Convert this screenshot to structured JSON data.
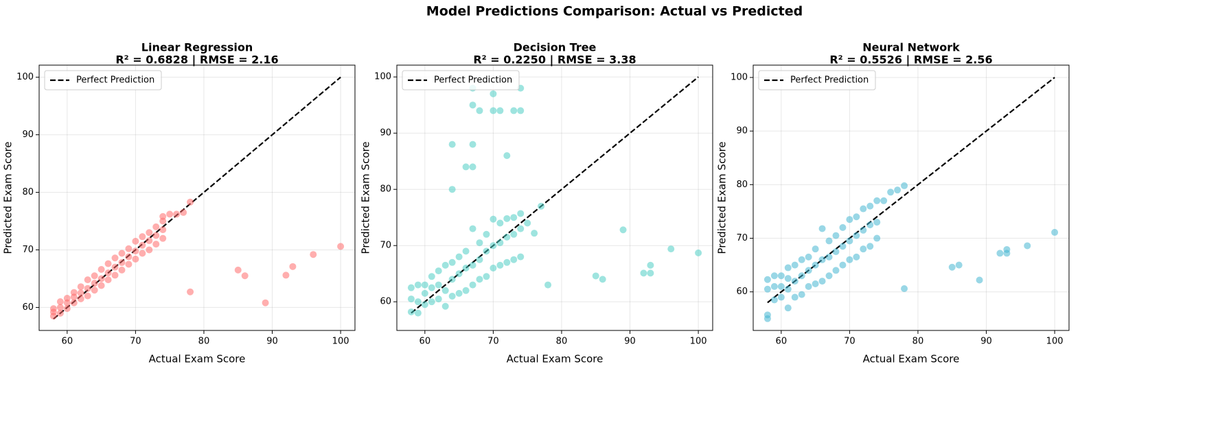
{
  "title": "Model Predictions Comparison: Actual vs Predicted",
  "chart_data": [
    {
      "type": "scatter",
      "title": "Linear Regression",
      "subtitle": "R² = 0.6828 | RMSE = 2.16",
      "x_label": "Actual Exam Score",
      "y_label": "Predicted Exam Score",
      "xlim": [
        55.9,
        102.1
      ],
      "ylim": [
        56.0,
        102.1
      ],
      "xticks": [
        60,
        70,
        80,
        90,
        100
      ],
      "yticks": [
        60,
        70,
        80,
        90,
        100
      ],
      "grid": true,
      "legend": "upper left",
      "series": [
        {
          "name": "Perfect Prediction",
          "color": "#000000",
          "style": "dashed",
          "x": [
            58,
            100
          ],
          "values": [
            58,
            100
          ]
        },
        {
          "color": "#FF6B6B",
          "x": [
            58,
            58,
            58,
            59,
            59,
            59,
            60,
            60,
            60,
            61,
            61,
            61,
            62,
            62,
            62,
            63,
            63,
            63,
            64,
            64,
            64,
            65,
            65,
            65,
            66,
            66,
            66,
            67,
            67,
            67,
            68,
            68,
            68,
            69,
            69,
            69,
            70,
            70,
            70,
            71,
            71,
            71,
            72,
            72,
            72,
            73,
            73,
            73,
            74,
            74,
            74,
            74,
            75,
            76,
            77,
            78,
            78,
            85,
            86,
            89,
            92,
            93,
            96,
            100
          ],
          "values": [
            58.5,
            59.2,
            59.8,
            59.0,
            60.0,
            61.0,
            59.8,
            60.8,
            61.6,
            60.8,
            61.8,
            62.6,
            61.5,
            62.5,
            63.6,
            62.0,
            63.3,
            64.8,
            63.0,
            64.2,
            65.5,
            63.8,
            65.0,
            66.6,
            64.8,
            66.0,
            67.6,
            65.6,
            67.0,
            68.6,
            66.5,
            67.8,
            69.4,
            67.5,
            68.8,
            70.2,
            68.4,
            69.8,
            71.5,
            69.4,
            70.8,
            72.3,
            70.0,
            71.6,
            73.0,
            71.0,
            72.5,
            74.0,
            72.0,
            73.5,
            75.0,
            75.8,
            76.2,
            76.2,
            76.5,
            78.3,
            62.7,
            66.5,
            65.5,
            60.8,
            65.6,
            67.1,
            69.2,
            70.6
          ]
        }
      ]
    },
    {
      "type": "scatter",
      "title": "Decision Tree",
      "subtitle": "R² = 0.2250 | RMSE = 3.38",
      "x_label": "Actual Exam Score",
      "y_label": "Predicted Exam Score",
      "xlim": [
        55.9,
        102.1
      ],
      "ylim": [
        54.9,
        102.1
      ],
      "xticks": [
        60,
        70,
        80,
        90,
        100
      ],
      "yticks": [
        60,
        70,
        80,
        90,
        100
      ],
      "grid": true,
      "legend": "upper left",
      "series": [
        {
          "name": "Perfect Prediction",
          "color": "#000000",
          "style": "dashed",
          "x": [
            58,
            100
          ],
          "values": [
            58,
            100
          ]
        },
        {
          "color": "#4ECDC4",
          "x": [
            58,
            58,
            58,
            59,
            59,
            59,
            60,
            60,
            60,
            61,
            61,
            61,
            62,
            62,
            62,
            63,
            63,
            63,
            64,
            64,
            64,
            65,
            65,
            65,
            66,
            66,
            66,
            67,
            67,
            67,
            68,
            68,
            68,
            69,
            69,
            69,
            70,
            70,
            70,
            71,
            71,
            71,
            72,
            72,
            72,
            73,
            73,
            73,
            74,
            74,
            74,
            64,
            64,
            66,
            67,
            67,
            67,
            67,
            68,
            70,
            70,
            71,
            72,
            73,
            74,
            74,
            75,
            76,
            77,
            78,
            85,
            86,
            89,
            92,
            93,
            93,
            96,
            100
          ],
          "values": [
            58.2,
            60.5,
            62.5,
            58.0,
            60.0,
            63.0,
            59.5,
            61.5,
            63.0,
            60.0,
            62.5,
            64.5,
            60.5,
            63.0,
            65.5,
            59.2,
            62.0,
            66.5,
            61.0,
            64.0,
            67.0,
            61.5,
            65.0,
            68.0,
            62.0,
            66.0,
            69.0,
            63.0,
            66.5,
            73.0,
            64.0,
            67.5,
            70.5,
            64.5,
            69.0,
            72.0,
            66.0,
            70.0,
            74.7,
            66.5,
            70.5,
            74.0,
            67.0,
            71.5,
            74.8,
            67.5,
            72.0,
            75.0,
            68.0,
            73.0,
            75.7,
            88.0,
            80.0,
            84.0,
            84.0,
            88.0,
            95.0,
            98.0,
            94.0,
            97.0,
            94.0,
            94.0,
            86.0,
            94.0,
            94.0,
            98.0,
            74.0,
            72.2,
            77.0,
            63.0,
            64.6,
            64.0,
            72.8,
            65.1,
            65.1,
            66.5,
            69.4,
            68.7
          ]
        }
      ]
    },
    {
      "type": "scatter",
      "title": "Neural Network",
      "subtitle": "R² = 0.5526 | RMSE = 2.56",
      "x_label": "Actual Exam Score",
      "y_label": "Predicted Exam Score",
      "xlim": [
        55.9,
        102.1
      ],
      "ylim": [
        52.8,
        102.3
      ],
      "xticks": [
        60,
        70,
        80,
        90,
        100
      ],
      "yticks": [
        60,
        70,
        80,
        90,
        100
      ],
      "grid": true,
      "legend": "upper left",
      "series": [
        {
          "name": "Perfect Prediction",
          "color": "#000000",
          "style": "dashed",
          "x": [
            58,
            100
          ],
          "values": [
            58,
            100
          ]
        },
        {
          "color": "#45B7D1",
          "x": [
            58,
            58,
            58,
            58,
            59,
            59,
            59,
            60,
            60,
            60,
            61,
            61,
            61,
            61,
            62,
            62,
            62,
            63,
            63,
            63,
            64,
            64,
            64,
            65,
            65,
            65,
            66,
            66,
            66,
            67,
            67,
            67,
            68,
            68,
            68,
            69,
            69,
            69,
            70,
            70,
            70,
            71,
            71,
            71,
            72,
            72,
            72,
            73,
            73,
            73,
            74,
            74,
            74,
            75,
            76,
            77,
            78,
            78,
            85,
            86,
            89,
            92,
            93,
            93,
            96,
            100
          ],
          "values": [
            55.0,
            55.7,
            60.5,
            62.3,
            58.5,
            61.0,
            63.0,
            59.0,
            61.0,
            63.0,
            57.0,
            60.5,
            62.5,
            64.5,
            59.0,
            62.0,
            65.0,
            59.5,
            63.0,
            66.0,
            61.0,
            64.0,
            66.5,
            61.5,
            65.0,
            68.0,
            62.0,
            66.0,
            71.8,
            63.0,
            66.5,
            69.5,
            64.0,
            67.5,
            70.5,
            65.0,
            68.5,
            72.0,
            66.0,
            69.5,
            73.5,
            66.5,
            70.5,
            74.0,
            68.0,
            71.5,
            75.5,
            68.5,
            72.5,
            76.0,
            70.0,
            73.0,
            77.0,
            77.0,
            78.6,
            79.0,
            79.8,
            60.6,
            64.6,
            65.0,
            62.2,
            67.2,
            67.2,
            67.9,
            68.6,
            71.1
          ]
        }
      ]
    }
  ]
}
